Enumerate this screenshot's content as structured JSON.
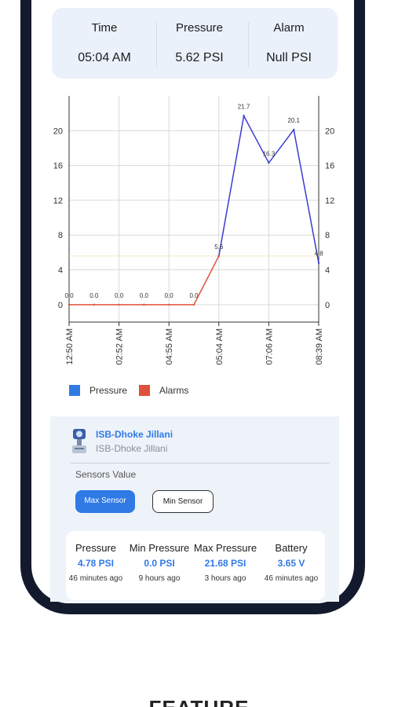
{
  "stats": {
    "time_label": "Time",
    "time_value": "05:04 AM",
    "pressure_label": "Pressure",
    "pressure_value": "5.62 PSI",
    "alarm_label": "Alarm",
    "alarm_value": "Null PSI"
  },
  "chart_data": {
    "type": "line",
    "categories": [
      "12:50 AM",
      "02:52 AM",
      "04:55 AM",
      "05:04 AM",
      "07:06 AM",
      "08:39 AM"
    ],
    "x": [
      0,
      1,
      2,
      3,
      4,
      5,
      6,
      7,
      8,
      9
    ],
    "series": [
      {
        "name": "Pressure",
        "color": "#3b3bd0",
        "x": [
          6,
          7,
          8,
          9,
          10
        ],
        "values": [
          5.6,
          21.7,
          16.3,
          20.1,
          4.8
        ],
        "labels": [
          "5.6",
          "21.7",
          "16.3",
          "20.1",
          "4.8"
        ]
      },
      {
        "name": "Alarms",
        "color": "#e0503c",
        "x": [
          0,
          1,
          2,
          3,
          4,
          5,
          6
        ],
        "values": [
          0,
          0,
          0,
          0,
          0,
          0,
          5.6
        ],
        "labels": [
          "0.0",
          "0.0",
          "0.0",
          "0.0",
          "0.0",
          "0.0",
          ""
        ]
      }
    ],
    "yticks": [
      "0",
      "4",
      "8",
      "12",
      "16",
      "20"
    ],
    "ylim": [
      -2,
      24
    ],
    "xlim": [
      0,
      10
    ],
    "grid": true,
    "legend_position": "bottom-left"
  },
  "legend": {
    "pressure_label": "Pressure",
    "pressure_color": "#2f7ae5",
    "alarms_label": "Alarms",
    "alarms_color": "#e0503c"
  },
  "device": {
    "name": "ISB-Dhoke Jillani",
    "subtitle": "ISB-Dhoke Jillani",
    "sensors_title": "Sensors Value",
    "max_button": "Max Sensor",
    "min_button": "Min Sensor"
  },
  "metrics": [
    {
      "label": "Pressure",
      "value": "4.78 PSI",
      "time": "46 minutes ago"
    },
    {
      "label": "Min Pressure",
      "value": "0.0 PSI",
      "time": "9 hours ago"
    },
    {
      "label": "Max Pressure",
      "value": "21.68 PSI",
      "time": "3 hours ago"
    },
    {
      "label": "Battery",
      "value": "3.65 V",
      "time": "46 minutes ago"
    }
  ],
  "footer": {
    "heading": "FEATURE"
  }
}
